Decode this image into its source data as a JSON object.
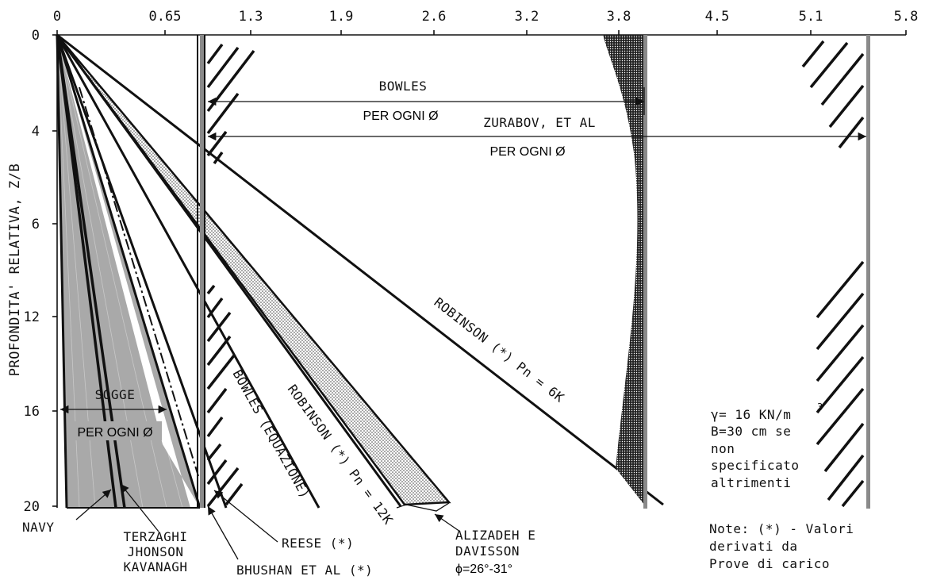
{
  "chart_data": {
    "type": "line",
    "ylabel": "PROFONDITA' RELATIVA, Z/B",
    "x_ticks": [
      "0",
      "0.65",
      "1.3",
      "1.9",
      "2.6",
      "3.2",
      "3.8",
      "4.5",
      "5.1",
      "5.8"
    ],
    "y_ticks": [
      "0",
      "4",
      "6",
      "12",
      "16",
      "20"
    ],
    "series": [
      {
        "name": "NAVY",
        "x": [
          0,
          0.05
        ],
        "y": [
          0,
          20
        ]
      },
      {
        "name": "TERZAGHI JHONSON KAVANAGH",
        "x": [
          0,
          0.45
        ],
        "y": [
          0,
          20
        ]
      },
      {
        "name": "SOGGE",
        "x": [
          0,
          1.0
        ],
        "y": [
          0,
          20
        ]
      },
      {
        "name": "REESE (*)",
        "x": [
          0,
          1.05
        ],
        "y": [
          0,
          20
        ]
      },
      {
        "name": "BHUSHAN ET AL (*)",
        "x": [
          0,
          1.15
        ],
        "y": [
          0,
          20
        ]
      },
      {
        "name": "BOWLES (EQUAZIONE)",
        "x": [
          0,
          1.8
        ],
        "y": [
          0,
          20
        ]
      },
      {
        "name": "ROBINSON (*) Pn = 12K",
        "x": [
          0,
          2.35
        ],
        "y": [
          0,
          20
        ]
      },
      {
        "name": "ALIZADEH E DAVISSON",
        "x": [
          0,
          2.7
        ],
        "y": [
          0,
          20
        ]
      },
      {
        "name": "ROBINSON (*) Pn = 6K",
        "x": [
          0,
          4.1
        ],
        "y": [
          0,
          20
        ]
      },
      {
        "name": "BOWLES",
        "x": [
          1.03,
          1.03
        ],
        "y": [
          0,
          20
        ]
      },
      {
        "name": "BOWLES",
        "x": [
          4.0,
          4.0
        ],
        "y": [
          0,
          20
        ]
      },
      {
        "name": "ZURABOV, ET AL",
        "x": [
          5.55,
          5.55
        ],
        "y": [
          0,
          20
        ]
      }
    ]
  },
  "labels": {
    "bowles_top": "BOWLES",
    "per_ogni_1": "PER OGNI Ø",
    "zurabov": "ZURABOV, ET AL",
    "per_ogni_2": "PER OGNI Ø",
    "sogge": "SOGGE",
    "per_ogni_3": "PER OGNI Ø",
    "bowles_eq": "BOWLES (EQUAZIONE)",
    "robinson12": "ROBINSON (*) Pn = 12K",
    "robinson6": "ROBINSON (*) Pn = 6K",
    "navy": "NAVY",
    "terzaghi1": "TERZAGHI",
    "terzaghi2": "JHONSON",
    "terzaghi3": "KAVANAGH",
    "reese": "REESE (*)",
    "bhushan": "BHUSHAN ET AL (*)",
    "alizadeh1": "ALIZADEH E",
    "alizadeh2": "DAVISSON",
    "phi": "ϕ=26°-31°",
    "gamma": "γ= 16 KN/m",
    "gamma_exp": "3",
    "b_line": "B=30 cm se",
    "non": "non",
    "specificato": "specificato",
    "altrimenti": "altrimenti",
    "note1": "Note: (*) - Valori",
    "note2": "derivati da",
    "note3": "Prove di carico"
  }
}
